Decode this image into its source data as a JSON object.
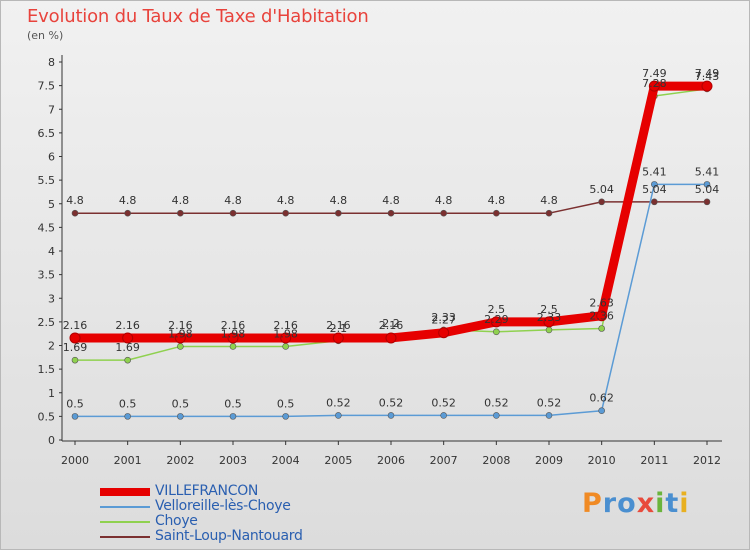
{
  "title": "Evolution du Taux de Taxe d'Habitation",
  "unit": "(en %)",
  "logo": {
    "text": "Proxiti",
    "letters": [
      "P",
      "r",
      "o",
      "x",
      "i",
      "t",
      "i"
    ],
    "colors": [
      "#f08a24",
      "#4a8fd0",
      "#4a8fd0",
      "#e84b3c",
      "#6ab43c",
      "#4a8fd0",
      "#e8b020"
    ]
  },
  "chart_data": {
    "type": "line",
    "title": "Evolution du Taux de Taxe d'Habitation",
    "ylabel": "(en %)",
    "xlabel": "",
    "categories": [
      "2000",
      "2001",
      "2002",
      "2003",
      "2004",
      "2005",
      "2006",
      "2007",
      "2008",
      "2009",
      "2010",
      "2011",
      "2012"
    ],
    "ylim": [
      0,
      8
    ],
    "yticks": [
      "0",
      "0.5",
      "1",
      "1.5",
      "2",
      "2.5",
      "3",
      "3.5",
      "4",
      "4.5",
      "5",
      "5.5",
      "6",
      "6.5",
      "7",
      "7.5",
      "8"
    ],
    "grid": false,
    "legend": "bottom-left",
    "series": [
      {
        "name": "VILLEFRANCON",
        "color": "#e60000",
        "values": [
          2.16,
          2.16,
          2.16,
          2.16,
          2.16,
          2.16,
          2.16,
          2.27,
          2.5,
          2.5,
          2.63,
          7.49,
          7.49
        ],
        "labels": [
          "2.16",
          "2.16",
          "2.16",
          "2.16",
          "2.16",
          "2.16",
          "2.16",
          "2.27",
          "2.5",
          "2.5",
          "2.63",
          "7.49",
          "7.49"
        ]
      },
      {
        "name": "Velloreille-lès-Choye",
        "color": "#5b9bd5",
        "values": [
          0.5,
          0.5,
          0.5,
          0.5,
          0.5,
          0.52,
          0.52,
          0.52,
          0.52,
          0.52,
          0.62,
          5.41,
          5.41
        ],
        "labels": [
          "0.5",
          "0.5",
          "0.5",
          "0.5",
          "0.5",
          "0.52",
          "0.52",
          "0.52",
          "0.52",
          "0.52",
          "0.62",
          "5.41",
          "5.41"
        ]
      },
      {
        "name": "Choye",
        "color": "#8fd14f",
        "values": [
          1.69,
          1.69,
          1.98,
          1.98,
          1.98,
          2.1,
          2.2,
          2.33,
          2.29,
          2.33,
          2.36,
          7.28,
          7.43
        ],
        "labels": [
          "1.69",
          "1.69",
          "1.98",
          "1.98",
          "1.98",
          "2.1",
          "2.2",
          "2.33",
          "2.29",
          "2.33",
          "2.36",
          "7.28",
          "7.43"
        ]
      },
      {
        "name": "Saint-Loup-Nantouard",
        "color": "#7b3030",
        "values": [
          4.8,
          4.8,
          4.8,
          4.8,
          4.8,
          4.8,
          4.8,
          4.8,
          4.8,
          4.8,
          5.04,
          5.04,
          5.04
        ],
        "labels": [
          "4.8",
          "4.8",
          "4.8",
          "4.8",
          "4.8",
          "4.8",
          "4.8",
          "4.8",
          "4.8",
          "4.8",
          "5.04",
          "5.04",
          "5.04"
        ]
      }
    ]
  }
}
